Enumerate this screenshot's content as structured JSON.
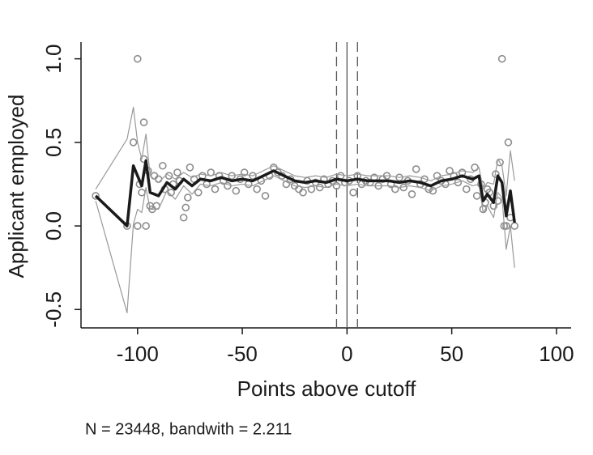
{
  "chart_data": {
    "type": "line",
    "xlabel": "Points above cutoff",
    "ylabel": "Applicant employed",
    "note": "N = 23448, bandwith = 2.211",
    "xlim": [
      -127,
      107
    ],
    "ylim": [
      -0.61,
      1.1
    ],
    "xticks": [
      -100,
      -50,
      0,
      50,
      100
    ],
    "yticks": [
      {
        "value": -0.5,
        "label": "-0.5"
      },
      {
        "value": 0,
        "label": "0.0"
      },
      {
        "value": 0.5,
        "label": "0.5"
      },
      {
        "value": 1,
        "label": "1.0"
      }
    ],
    "vlines": [
      {
        "value": -5,
        "dash": true
      },
      {
        "value": 0,
        "dash": false
      },
      {
        "value": 5,
        "dash": true
      }
    ],
    "series": [
      {
        "kind": "scatter",
        "color": "#8c8c8c",
        "x": [
          -120,
          -105,
          -102,
          -100,
          -100,
          -99,
          -98,
          -97,
          -97,
          -96,
          -95,
          -94,
          -93,
          -92,
          -91,
          -90,
          -88,
          -87,
          -85,
          -84,
          -83,
          -81,
          -80,
          -78,
          -77,
          -76,
          -75,
          -73,
          -71,
          -69,
          -67,
          -65,
          -63,
          -61,
          -59,
          -57,
          -55,
          -53,
          -51,
          -49,
          -47,
          -45,
          -43,
          -41,
          -39,
          -37,
          -35,
          -33,
          -31,
          -29,
          -27,
          -25,
          -23,
          -21,
          -19,
          -17,
          -15,
          -13,
          -11,
          -9,
          -7,
          -5,
          -3,
          -1,
          1,
          3,
          5,
          7,
          9,
          11,
          13,
          15,
          17,
          19,
          21,
          23,
          25,
          27,
          29,
          31,
          33,
          35,
          37,
          39,
          41,
          43,
          45,
          47,
          49,
          51,
          53,
          55,
          57,
          59,
          61,
          62,
          64,
          65,
          66,
          67,
          68,
          70,
          71,
          72,
          73,
          74,
          75,
          76,
          77,
          78,
          80
        ],
        "values": [
          0.18,
          0.0,
          0.5,
          1.0,
          0.0,
          0.25,
          0.2,
          0.62,
          0.4,
          0.0,
          0.33,
          0.12,
          0.1,
          0.3,
          0.12,
          0.28,
          0.36,
          0.22,
          0.3,
          0.2,
          0.25,
          0.32,
          0.27,
          0.05,
          0.11,
          0.17,
          0.35,
          0.28,
          0.2,
          0.3,
          0.25,
          0.32,
          0.22,
          0.3,
          0.27,
          0.24,
          0.3,
          0.21,
          0.28,
          0.32,
          0.25,
          0.3,
          0.22,
          0.27,
          0.18,
          0.3,
          0.35,
          0.32,
          0.3,
          0.25,
          0.28,
          0.24,
          0.22,
          0.2,
          0.27,
          0.22,
          0.26,
          0.23,
          0.28,
          0.25,
          0.27,
          0.24,
          0.3,
          0.26,
          0.27,
          0.2,
          0.3,
          0.25,
          0.27,
          0.26,
          0.29,
          0.24,
          0.28,
          0.3,
          0.25,
          0.22,
          0.29,
          0.23,
          0.27,
          0.19,
          0.34,
          0.25,
          0.28,
          0.22,
          0.21,
          0.3,
          0.27,
          0.25,
          0.33,
          0.3,
          0.26,
          0.32,
          0.22,
          0.28,
          0.35,
          0.18,
          0.25,
          0.1,
          0.14,
          0.22,
          0.2,
          0.12,
          0.31,
          0.15,
          0.38,
          1.0,
          0.0,
          0.0,
          0.5,
          0.05,
          0.0
        ]
      },
      {
        "kind": "line",
        "color": "#999999",
        "width": 1.2,
        "x": [
          -120,
          -105,
          -102,
          -100,
          -98,
          -96,
          -94,
          -90,
          -86,
          -82,
          -78,
          -74,
          -70,
          -65,
          -60,
          -55,
          -50,
          -45,
          -40,
          -35,
          -30,
          -25,
          -20,
          -15,
          -10,
          -5,
          0,
          5,
          10,
          15,
          20,
          25,
          30,
          35,
          40,
          45,
          50,
          55,
          60,
          63,
          65,
          67,
          70,
          72,
          74,
          76,
          78,
          80
        ],
        "values": [
          0.22,
          0.52,
          0.71,
          0.5,
          0.4,
          0.55,
          0.3,
          0.26,
          0.31,
          0.28,
          0.32,
          0.29,
          0.31,
          0.3,
          0.32,
          0.3,
          0.31,
          0.3,
          0.33,
          0.36,
          0.33,
          0.3,
          0.29,
          0.3,
          0.29,
          0.31,
          0.3,
          0.31,
          0.3,
          0.3,
          0.3,
          0.29,
          0.3,
          0.29,
          0.27,
          0.3,
          0.31,
          0.33,
          0.32,
          0.35,
          0.22,
          0.26,
          0.25,
          0.4,
          0.36,
          0.18,
          0.45,
          0.27
        ]
      },
      {
        "kind": "line",
        "color": "#999999",
        "width": 1.2,
        "x": [
          -120,
          -105,
          -102,
          -100,
          -98,
          -96,
          -94,
          -90,
          -86,
          -82,
          -78,
          -74,
          -70,
          -65,
          -60,
          -55,
          -50,
          -45,
          -40,
          -35,
          -30,
          -25,
          -20,
          -15,
          -10,
          -5,
          0,
          5,
          10,
          15,
          20,
          25,
          30,
          35,
          40,
          45,
          50,
          55,
          60,
          63,
          65,
          67,
          70,
          72,
          74,
          76,
          78,
          80
        ],
        "values": [
          0.15,
          -0.52,
          0.01,
          0.1,
          0.08,
          0.23,
          0.1,
          0.1,
          0.21,
          0.16,
          0.24,
          0.19,
          0.25,
          0.24,
          0.26,
          0.24,
          0.25,
          0.24,
          0.27,
          0.3,
          0.27,
          0.24,
          0.23,
          0.24,
          0.23,
          0.25,
          0.24,
          0.25,
          0.24,
          0.24,
          0.24,
          0.23,
          0.24,
          0.23,
          0.21,
          0.24,
          0.25,
          0.27,
          0.24,
          0.25,
          0.08,
          0.12,
          0.05,
          0.2,
          0.17,
          -0.14,
          0.0,
          -0.25
        ]
      },
      {
        "kind": "line",
        "color": "#1a1a1a",
        "width": 3.5,
        "x": [
          -120,
          -105,
          -102,
          -100,
          -98,
          -96,
          -94,
          -90,
          -86,
          -82,
          -78,
          -74,
          -70,
          -65,
          -60,
          -55,
          -50,
          -45,
          -40,
          -35,
          -30,
          -25,
          -20,
          -15,
          -10,
          -5,
          0,
          5,
          10,
          15,
          20,
          25,
          30,
          35,
          40,
          45,
          50,
          55,
          60,
          63,
          65,
          67,
          70,
          72,
          74,
          76,
          78,
          80
        ],
        "values": [
          0.18,
          0.0,
          0.36,
          0.3,
          0.24,
          0.39,
          0.2,
          0.18,
          0.26,
          0.22,
          0.28,
          0.24,
          0.28,
          0.27,
          0.29,
          0.27,
          0.28,
          0.27,
          0.3,
          0.33,
          0.3,
          0.27,
          0.26,
          0.27,
          0.26,
          0.28,
          0.27,
          0.28,
          0.27,
          0.27,
          0.27,
          0.26,
          0.27,
          0.26,
          0.24,
          0.27,
          0.28,
          0.3,
          0.28,
          0.3,
          0.15,
          0.19,
          0.14,
          0.3,
          0.26,
          0.06,
          0.21,
          0.02
        ]
      }
    ]
  }
}
